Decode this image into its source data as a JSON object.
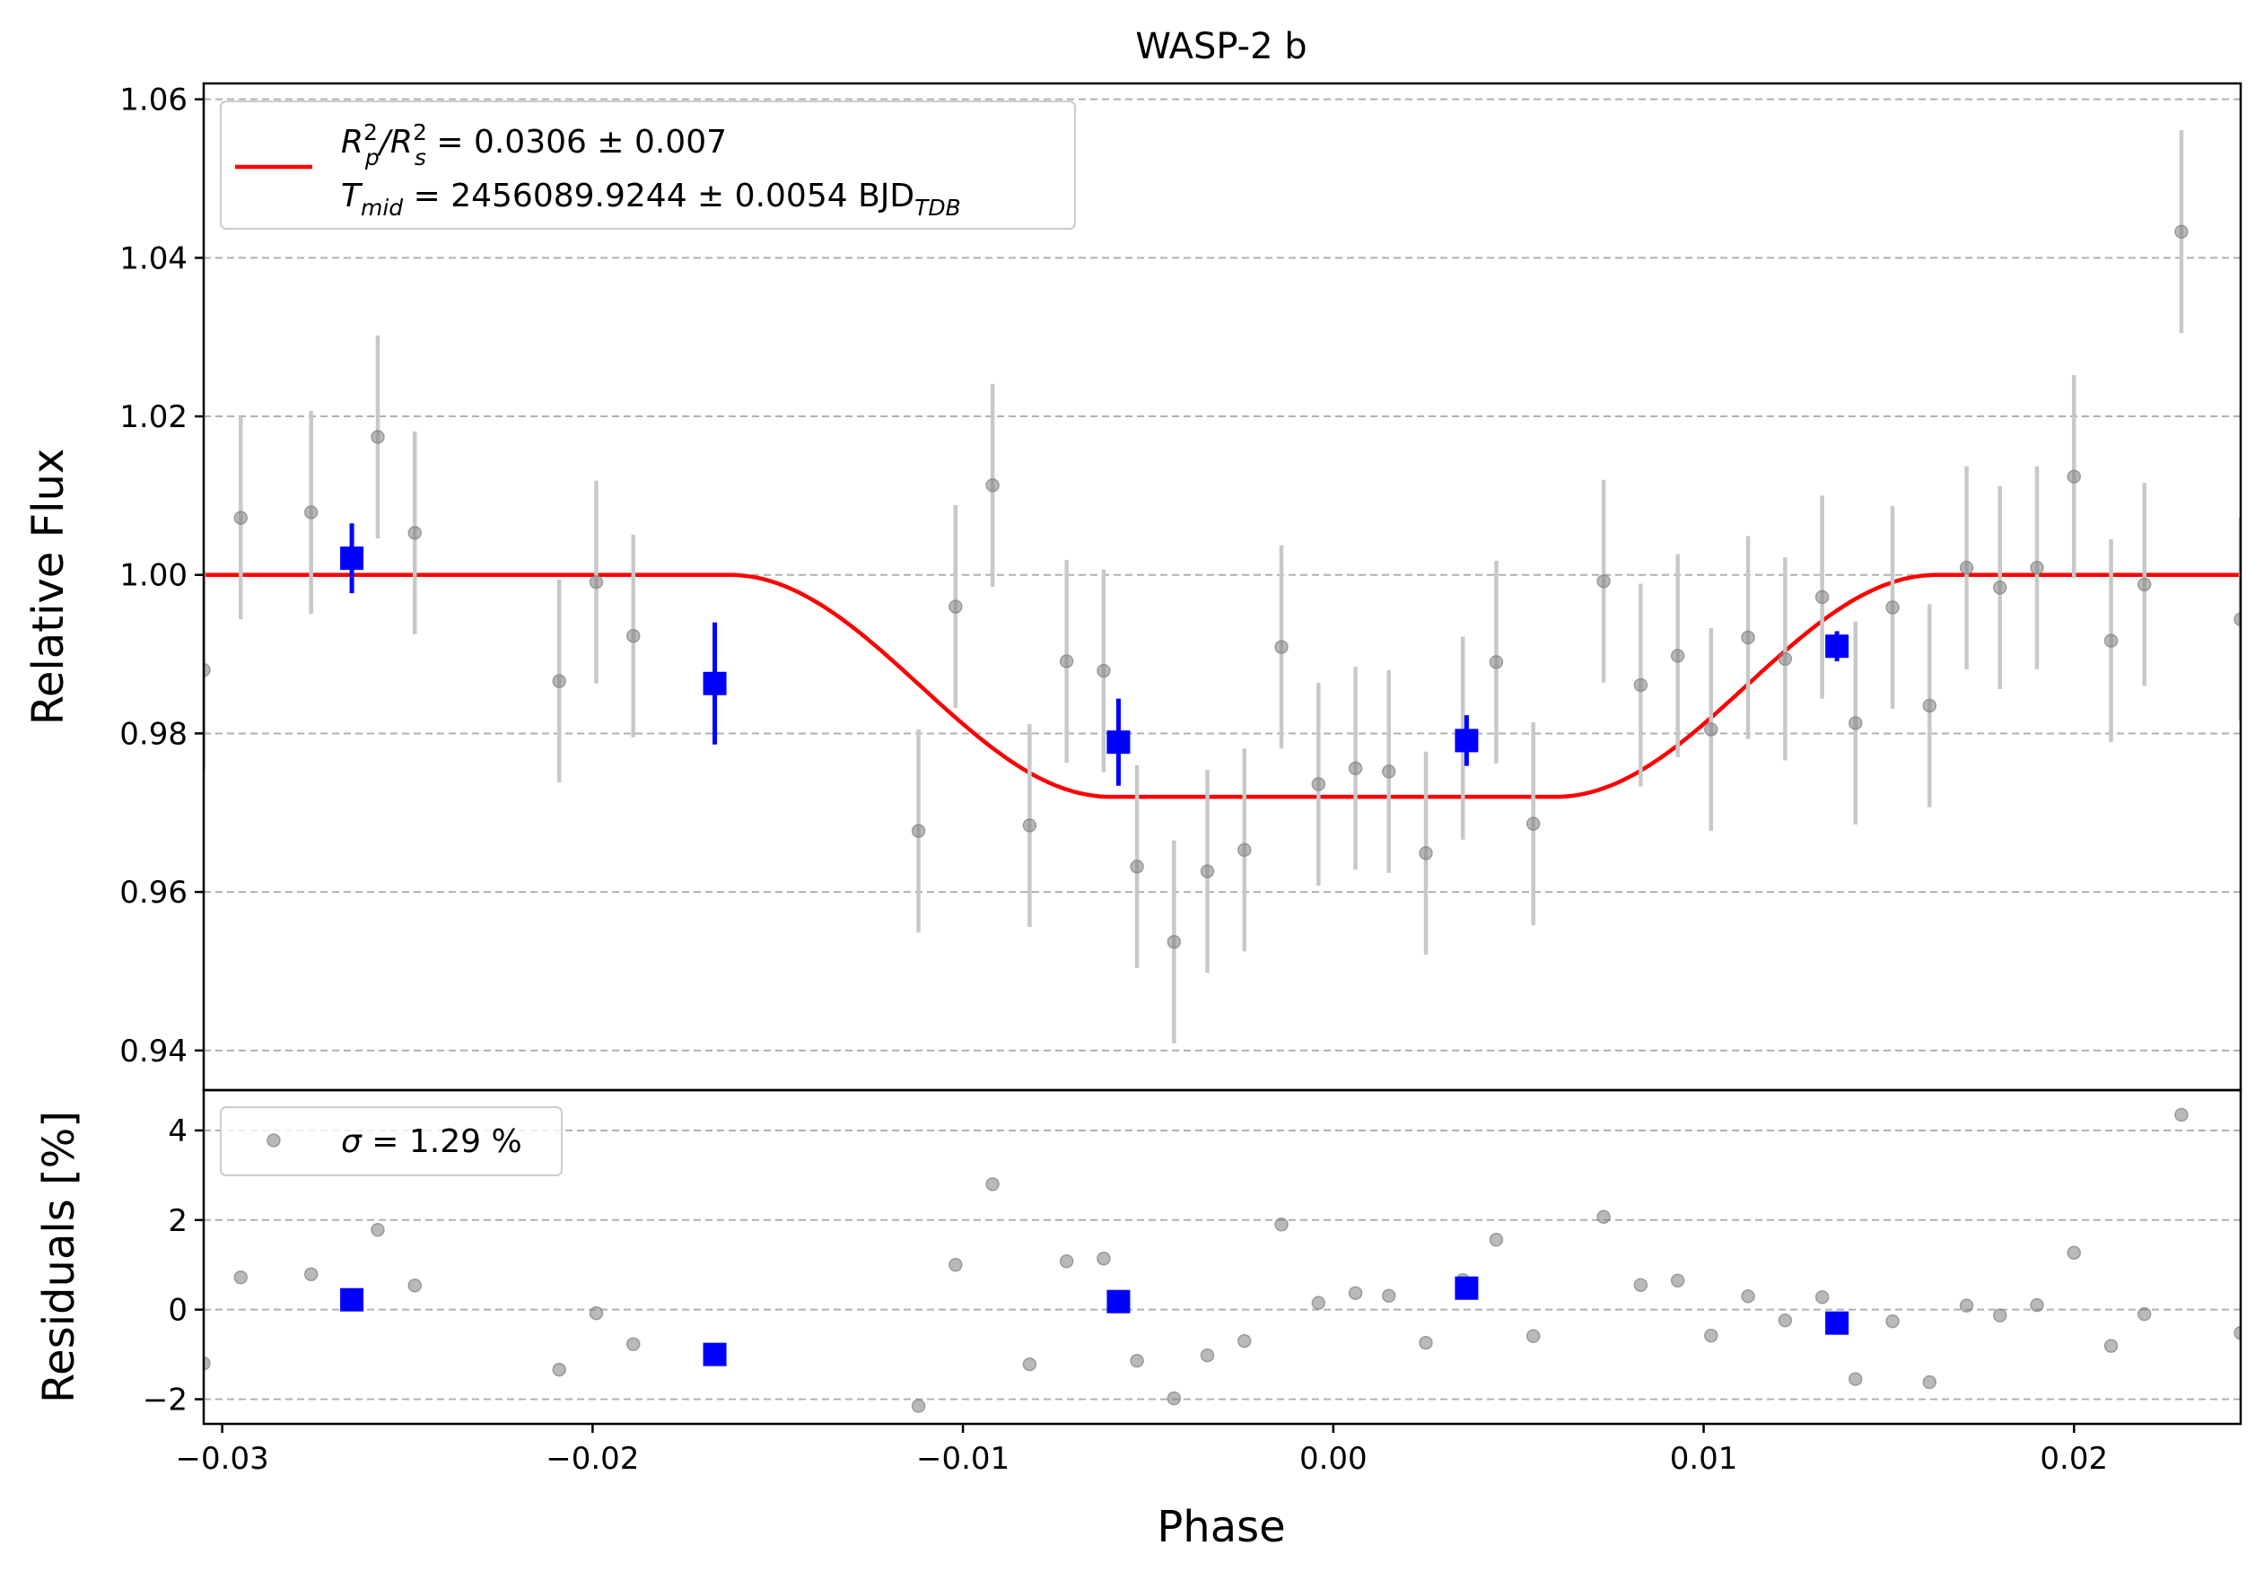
{
  "chart_data": {
    "type": "scatter",
    "title": "WASP-2 b",
    "xlabel": "Phase",
    "colors": {
      "raw": "#808080",
      "binned": "#0000ff",
      "model": "#ff0000",
      "grid": "#b0b0b0"
    },
    "xlim": [
      -0.0305,
      0.0245
    ],
    "x_ticks": [
      {
        "value": -0.03,
        "label": "−0.03"
      },
      {
        "value": -0.02,
        "label": "−0.02"
      },
      {
        "value": -0.01,
        "label": "−0.01"
      },
      {
        "value": 0.0,
        "label": "0.00"
      },
      {
        "value": 0.01,
        "label": "0.01"
      },
      {
        "value": 0.02,
        "label": "0.02"
      }
    ],
    "top_panel": {
      "ylabel": "Relative Flux",
      "ylim": [
        0.935,
        1.062
      ],
      "y_ticks": [
        {
          "value": 0.94,
          "label": "0.94"
        },
        {
          "value": 0.96,
          "label": "0.96"
        },
        {
          "value": 0.98,
          "label": "0.98"
        },
        {
          "value": 1.0,
          "label": "1.00"
        },
        {
          "value": 1.02,
          "label": "1.02"
        },
        {
          "value": 1.04,
          "label": "1.04"
        },
        {
          "value": 1.06,
          "label": "1.06"
        }
      ],
      "grid": "horizontal-dashed",
      "legend": {
        "placement": "upper-left",
        "line1": {
          "sym": "R",
          "sub1": "p",
          "sup1": "2",
          "sep": "/R",
          "sub2": "s",
          "sup2": "2",
          "text": " = 0.0306 ± 0.007"
        },
        "line2": {
          "sym": "T",
          "sub": "mid",
          "text": " = 2456089.9244 ± 0.0054 BJD",
          "sub_tail": "TDB"
        }
      },
      "model": {
        "baseline": 1.0,
        "depth": 0.028,
        "t14_half": 0.0163,
        "t23_half": 0.006
      },
      "raw_points": [
        {
          "x": -0.0305,
          "y": 0.988,
          "err": 0.0125
        },
        {
          "x": -0.0295,
          "y": 1.0072,
          "err": 0.0128
        },
        {
          "x": -0.0276,
          "y": 1.0079,
          "err": 0.0128
        },
        {
          "x": -0.0258,
          "y": 1.0174,
          "err": 0.0128
        },
        {
          "x": -0.0248,
          "y": 1.0053,
          "err": 0.0128
        },
        {
          "x": -0.0209,
          "y": 0.9866,
          "err": 0.0128
        },
        {
          "x": -0.0199,
          "y": 0.9991,
          "err": 0.0128
        },
        {
          "x": -0.0189,
          "y": 0.9923,
          "err": 0.0128
        },
        {
          "x": -0.0112,
          "y": 0.9677,
          "err": 0.0128
        },
        {
          "x": -0.0102,
          "y": 0.996,
          "err": 0.0128
        },
        {
          "x": -0.0092,
          "y": 1.0113,
          "err": 0.0128
        },
        {
          "x": -0.0082,
          "y": 0.9684,
          "err": 0.0128
        },
        {
          "x": -0.0072,
          "y": 0.9891,
          "err": 0.0128
        },
        {
          "x": -0.0062,
          "y": 0.9879,
          "err": 0.0128
        },
        {
          "x": -0.0053,
          "y": 0.9632,
          "err": 0.0128
        },
        {
          "x": -0.0043,
          "y": 0.9537,
          "err": 0.0128
        },
        {
          "x": -0.0034,
          "y": 0.9626,
          "err": 0.0128
        },
        {
          "x": -0.0024,
          "y": 0.9653,
          "err": 0.0128
        },
        {
          "x": -0.0014,
          "y": 0.9909,
          "err": 0.0128
        },
        {
          "x": -0.0004,
          "y": 0.9736,
          "err": 0.0128
        },
        {
          "x": 0.0006,
          "y": 0.9756,
          "err": 0.0128
        },
        {
          "x": 0.0015,
          "y": 0.9752,
          "err": 0.0128
        },
        {
          "x": 0.0025,
          "y": 0.9649,
          "err": 0.0128
        },
        {
          "x": 0.0035,
          "y": 0.9794,
          "err": 0.0128
        },
        {
          "x": 0.0044,
          "y": 0.989,
          "err": 0.0128
        },
        {
          "x": 0.0054,
          "y": 0.9686,
          "err": 0.0128
        },
        {
          "x": 0.0073,
          "y": 0.9992,
          "err": 0.0128
        },
        {
          "x": 0.0083,
          "y": 0.9861,
          "err": 0.0128
        },
        {
          "x": 0.0093,
          "y": 0.9898,
          "err": 0.0128
        },
        {
          "x": 0.0102,
          "y": 0.9805,
          "err": 0.0128
        },
        {
          "x": 0.0112,
          "y": 0.9921,
          "err": 0.0128
        },
        {
          "x": 0.0122,
          "y": 0.9894,
          "err": 0.0128
        },
        {
          "x": 0.0132,
          "y": 0.9972,
          "err": 0.0128
        },
        {
          "x": 0.0141,
          "y": 0.9813,
          "err": 0.0128
        },
        {
          "x": 0.0151,
          "y": 0.9959,
          "err": 0.0128
        },
        {
          "x": 0.0161,
          "y": 0.9835,
          "err": 0.0128
        },
        {
          "x": 0.0171,
          "y": 1.0009,
          "err": 0.0128
        },
        {
          "x": 0.018,
          "y": 0.9984,
          "err": 0.0128
        },
        {
          "x": 0.019,
          "y": 1.0009,
          "err": 0.0128
        },
        {
          "x": 0.02,
          "y": 1.0124,
          "err": 0.0128
        },
        {
          "x": 0.021,
          "y": 0.9917,
          "err": 0.0128
        },
        {
          "x": 0.0219,
          "y": 0.9988,
          "err": 0.0128
        },
        {
          "x": 0.0229,
          "y": 1.0433,
          "err": 0.0128
        },
        {
          "x": 0.0245,
          "y": 0.9944,
          "err": 0.0128
        }
      ],
      "binned_points": [
        {
          "x": -0.0265,
          "y": 1.0021,
          "err": 0.0044
        },
        {
          "x": -0.0167,
          "y": 0.9863,
          "err": 0.0077
        },
        {
          "x": -0.0058,
          "y": 0.9789,
          "err": 0.0055
        },
        {
          "x": 0.0036,
          "y": 0.9791,
          "err": 0.0032
        },
        {
          "x": 0.0136,
          "y": 0.991,
          "err": 0.0019
        }
      ]
    },
    "bottom_panel": {
      "ylabel": "Residuals [%]",
      "ylim": [
        -2.55,
        4.9
      ],
      "y_ticks": [
        {
          "value": -2,
          "label": "−2"
        },
        {
          "value": 0,
          "label": "0"
        },
        {
          "value": 2,
          "label": "2"
        },
        {
          "value": 4,
          "label": "4"
        }
      ],
      "grid": "horizontal-dashed",
      "legend": {
        "placement": "upper-left",
        "sym": "σ",
        "text": " = 1.29 %"
      },
      "raw_points": [
        {
          "x": -0.0305,
          "y": -1.2
        },
        {
          "x": -0.0295,
          "y": 0.72
        },
        {
          "x": -0.0276,
          "y": 0.79
        },
        {
          "x": -0.0258,
          "y": 1.78
        },
        {
          "x": -0.0248,
          "y": 0.54
        },
        {
          "x": -0.0209,
          "y": -1.34
        },
        {
          "x": -0.0199,
          "y": -0.08
        },
        {
          "x": -0.0189,
          "y": -0.77
        },
        {
          "x": -0.0112,
          "y": -2.15
        },
        {
          "x": -0.0102,
          "y": 1.0
        },
        {
          "x": -0.0092,
          "y": 2.8
        },
        {
          "x": -0.0082,
          "y": -1.22
        },
        {
          "x": -0.0072,
          "y": 1.08
        },
        {
          "x": -0.0062,
          "y": 1.14
        },
        {
          "x": -0.0053,
          "y": -1.14
        },
        {
          "x": -0.0043,
          "y": -1.98
        },
        {
          "x": -0.0034,
          "y": -1.02
        },
        {
          "x": -0.0024,
          "y": -0.7
        },
        {
          "x": -0.0014,
          "y": 1.9
        },
        {
          "x": -0.0004,
          "y": 0.15
        },
        {
          "x": 0.0006,
          "y": 0.37
        },
        {
          "x": 0.0015,
          "y": 0.31
        },
        {
          "x": 0.0025,
          "y": -0.74
        },
        {
          "x": 0.0035,
          "y": 0.66
        },
        {
          "x": 0.0044,
          "y": 1.56
        },
        {
          "x": 0.0054,
          "y": -0.59
        },
        {
          "x": 0.0073,
          "y": 2.07
        },
        {
          "x": 0.0083,
          "y": 0.55
        },
        {
          "x": 0.0093,
          "y": 0.65
        },
        {
          "x": 0.0102,
          "y": -0.58
        },
        {
          "x": 0.0112,
          "y": 0.3
        },
        {
          "x": 0.0122,
          "y": -0.24
        },
        {
          "x": 0.0132,
          "y": 0.28
        },
        {
          "x": 0.0141,
          "y": -1.55
        },
        {
          "x": 0.0151,
          "y": -0.26
        },
        {
          "x": 0.0161,
          "y": -1.62
        },
        {
          "x": 0.0171,
          "y": 0.09
        },
        {
          "x": 0.018,
          "y": -0.13
        },
        {
          "x": 0.019,
          "y": 0.1
        },
        {
          "x": 0.02,
          "y": 1.27
        },
        {
          "x": 0.021,
          "y": -0.81
        },
        {
          "x": 0.0219,
          "y": -0.1
        },
        {
          "x": 0.0229,
          "y": 4.35
        },
        {
          "x": 0.0245,
          "y": -0.52
        }
      ],
      "binned_points": [
        {
          "x": -0.0265,
          "y": 0.22
        },
        {
          "x": -0.0167,
          "y": -1.0
        },
        {
          "x": -0.0058,
          "y": 0.18
        },
        {
          "x": 0.0036,
          "y": 0.48
        },
        {
          "x": 0.0136,
          "y": -0.3
        }
      ]
    }
  }
}
